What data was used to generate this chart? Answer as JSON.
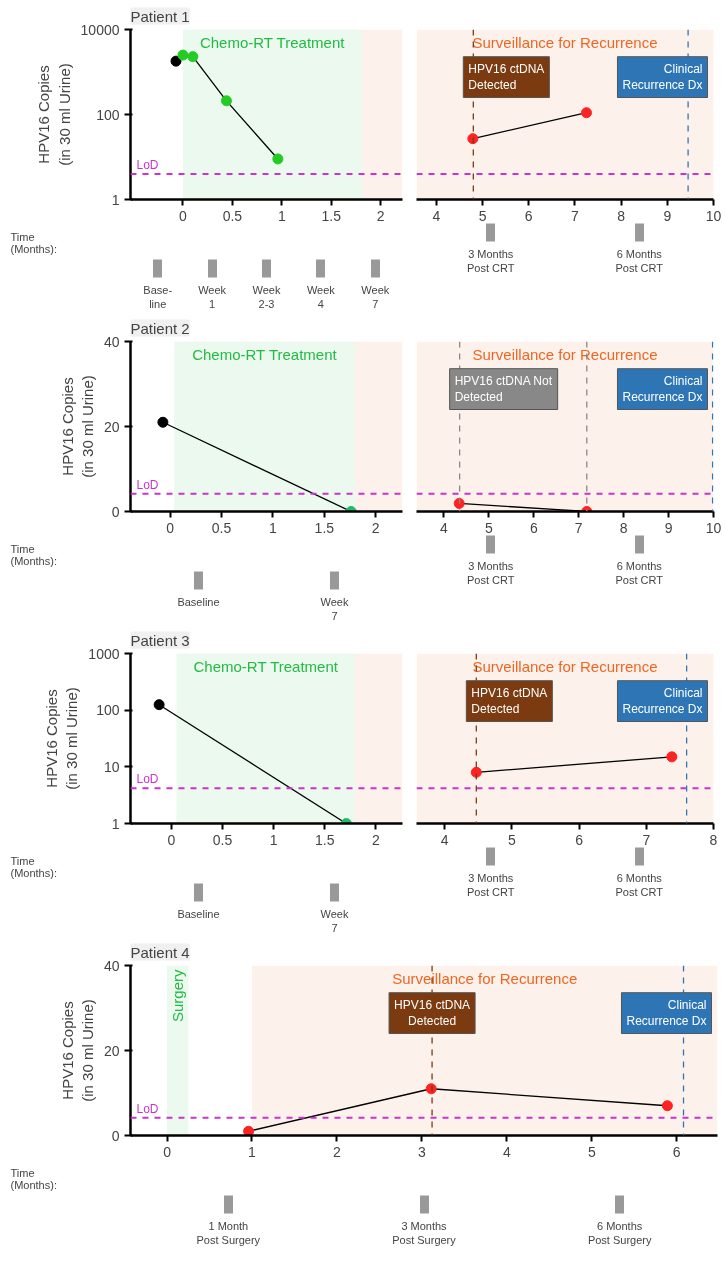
{
  "chart_data": [
    {
      "type": "line",
      "title": "Patient 1",
      "ylabel": "HPV16 Copies\n(in 30 ml Urine)",
      "xlabel": "Time\n(Months):",
      "log": "y",
      "marker": "circle",
      "xlim": [
        -0.53,
        2.22
      ],
      "xticks": [
        0,
        0.5,
        1,
        1.5,
        2
      ],
      "ylim": [
        1,
        10000
      ],
      "yticks": [
        1,
        100,
        10000
      ],
      "x": [
        -0.07,
        0,
        0.1,
        0.44,
        0.96
      ],
      "series": [
        {
          "color": "#000000",
          "colors": [
            "#000000",
            "#22cc22",
            "#22cc22",
            "#22cc22",
            "#22cc22"
          ],
          "values": [
            1800,
            2500,
            2300,
            210,
            9
          ]
        }
      ],
      "bands": [
        {
          "axis": "x",
          "from": 0,
          "to": 1.81,
          "label": "Chemo-RT Treatment",
          "color": "#22bb44"
        },
        {
          "axis": "x",
          "from": 1.81,
          "to": 2.22,
          "color": "#ee6622"
        }
      ],
      "ref_lines": [
        {
          "axis": "y",
          "value": 4,
          "label": "LoD",
          "color": "#cc33cc",
          "line_style": "dashed"
        }
      ],
      "annotations": [
        "Base-\nline",
        "Week\n1",
        "Week\n2-3",
        "Week\n4",
        "Week\n7"
      ]
    },
    {
      "type": "line",
      "log": "y",
      "marker": "circle",
      "tick_labels": "x",
      "xlim": [
        3.57,
        10
      ],
      "xticks": [
        4,
        5,
        6,
        7,
        8,
        9,
        10
      ],
      "ylim": [
        1,
        10000
      ],
      "yticks": [
        1,
        100,
        10000
      ],
      "x": [
        4.79,
        7.25
      ],
      "series": [
        {
          "color": "#000000",
          "colors": [
            "#ff2222",
            "#ff2222"
          ],
          "values": [
            27,
            110
          ]
        }
      ],
      "bands": [
        {
          "axis": "x",
          "from": 3.57,
          "to": 10,
          "label": "Surveillance for Recurrence",
          "color": "#ee6622"
        }
      ],
      "ref_lines": [
        {
          "axis": "y",
          "value": 4,
          "color": "#cc33cc",
          "line_style": "dashed"
        },
        {
          "axis": "x",
          "value": 4.8,
          "label": "HPV16 ctDNA\nDetected",
          "color": "#7b3a10",
          "line_style": "dashed"
        },
        {
          "axis": "x",
          "value": 9.45,
          "label": "Clinical\nRecurrence Dx",
          "color": "#2e75b6",
          "line_style": "dashed"
        }
      ],
      "annotations": [
        "3 Months\nPost CRT",
        "6 Months\nPost CRT"
      ]
    },
    {
      "type": "line",
      "title": "Patient 2",
      "ylabel": "HPV16 Copies\n(in 30 ml Urine)",
      "xlabel": "Time\n(Months):",
      "marker": "circle",
      "xlim": [
        -0.385,
        2.26
      ],
      "xticks": [
        0,
        0.5,
        1,
        1.5,
        2
      ],
      "ylim": [
        0,
        40
      ],
      "yticks": [
        0,
        20,
        40
      ],
      "x": [
        -0.07,
        1.76
      ],
      "series": [
        {
          "color": "#000000",
          "colors": [
            "#000000",
            "#22bb66"
          ],
          "values": [
            21,
            0
          ]
        }
      ],
      "bands": [
        {
          "axis": "x",
          "from": 0.04,
          "to": 1.8,
          "label": "Chemo-RT Treatment",
          "color": "#22bb44"
        },
        {
          "axis": "x",
          "from": 1.8,
          "to": 2.26,
          "color": "#ee6622"
        }
      ],
      "ref_lines": [
        {
          "axis": "y",
          "value": 4.2,
          "label": "LoD",
          "color": "#cc33cc",
          "line_style": "dashed"
        }
      ],
      "annotations": [
        "Baseline",
        "Week\n7"
      ]
    },
    {
      "type": "line",
      "marker": "circle",
      "tick_labels": "x",
      "xlim": [
        3.39,
        10
      ],
      "xticks": [
        4,
        5,
        6,
        7,
        8,
        9,
        10
      ],
      "ylim": [
        0,
        40
      ],
      "yticks": [
        0,
        20,
        40
      ],
      "x": [
        4.34,
        7.18
      ],
      "series": [
        {
          "color": "#000000",
          "colors": [
            "#ff2222",
            "#ff2222"
          ],
          "values": [
            1.9,
            0
          ]
        }
      ],
      "bands": [
        {
          "axis": "x",
          "from": 3.39,
          "to": 10,
          "label": "Surveillance for Recurrence",
          "color": "#ee6622"
        }
      ],
      "ref_lines": [
        {
          "axis": "y",
          "value": 4.2,
          "color": "#cc33cc",
          "line_style": "dashed"
        },
        {
          "axis": "x",
          "value": 4.35,
          "label": "HPV16 ctDNA Not\nDetected",
          "color": "#888888",
          "line_style": "dashed"
        },
        {
          "axis": "x",
          "value": 7.18,
          "color": "#888888",
          "line_style": "dashed"
        },
        {
          "axis": "x",
          "value": 9.98,
          "label": "Clinical\nRecurrence Dx",
          "color": "#2e75b6",
          "line_style": "dashed"
        }
      ],
      "annotations": [
        "3 Months\nPost CRT",
        "6 Months\nPost CRT"
      ]
    },
    {
      "type": "line",
      "title": "Patient 3",
      "ylabel": "HPV16 Copies\n(in 30 ml Urine)",
      "xlabel": "Time\n(Months):",
      "log": "y",
      "marker": "circle",
      "xlim": [
        -0.4,
        2.26
      ],
      "xticks": [
        0,
        0.5,
        1,
        1.5,
        2
      ],
      "ylim": [
        1,
        1000
      ],
      "yticks": [
        1,
        10,
        100,
        1000
      ],
      "x": [
        -0.12,
        1.71
      ],
      "series": [
        {
          "color": "#000000",
          "colors": [
            "#000000",
            "#22bb66"
          ],
          "values": [
            125,
            1
          ]
        }
      ],
      "bands": [
        {
          "axis": "x",
          "from": 0.05,
          "to": 1.8,
          "label": "Chemo-RT Treatment",
          "color": "#22bb44"
        },
        {
          "axis": "x",
          "from": 1.8,
          "to": 2.26,
          "color": "#ee6622"
        }
      ],
      "ref_lines": [
        {
          "axis": "y",
          "value": 4.2,
          "label": "LoD",
          "color": "#cc33cc",
          "line_style": "dashed"
        }
      ],
      "annotations": [
        "Baseline",
        "Week\n7"
      ]
    },
    {
      "type": "line",
      "log": "y",
      "marker": "circle",
      "tick_labels": "x",
      "xlim": [
        3.58,
        8
      ],
      "xticks": [
        4,
        5,
        6,
        7,
        8
      ],
      "ylim": [
        1,
        1000
      ],
      "yticks": [
        1,
        10,
        100,
        1000
      ],
      "x": [
        4.47,
        7.38
      ],
      "series": [
        {
          "color": "#000000",
          "colors": [
            "#ff2222",
            "#ff2222"
          ],
          "values": [
            8,
            15
          ]
        }
      ],
      "bands": [
        {
          "axis": "x",
          "from": 3.58,
          "to": 8,
          "label": "Surveillance for Recurrence",
          "color": "#ee6622"
        }
      ],
      "ref_lines": [
        {
          "axis": "y",
          "value": 4.2,
          "color": "#cc33cc",
          "line_style": "dashed"
        },
        {
          "axis": "x",
          "value": 4.47,
          "label": "HPV16 ctDNA\nDetected",
          "color": "#7b3a10",
          "line_style": "dashed"
        },
        {
          "axis": "x",
          "value": 7.6,
          "label": "Clinical\nRecurrence Dx",
          "color": "#2e75b6",
          "line_style": "dashed"
        }
      ],
      "annotations": [
        "3 Months\nPost CRT",
        "6 Months\nPost CRT"
      ]
    },
    {
      "type": "line",
      "title": "Patient 4",
      "ylabel": "HPV16 Copies\n(in 30 ml Urine)",
      "xlabel": "Time\n(Months):",
      "marker": "circle",
      "xlim": [
        -0.43,
        6.48
      ],
      "xticks": [
        0,
        1,
        2,
        3,
        4,
        5,
        6
      ],
      "ylim": [
        0,
        40
      ],
      "yticks": [
        0,
        20,
        40
      ],
      "x": [
        0.96,
        3.11,
        5.89
      ],
      "series": [
        {
          "color": "#000000",
          "colors": [
            "#ff2222",
            "#ff2222",
            "#ff2222"
          ],
          "values": [
            1,
            11,
            7
          ]
        }
      ],
      "bands": [
        {
          "axis": "x",
          "from": 0,
          "to": 0.25,
          "label": "Surgery",
          "color": "#22bb44"
        },
        {
          "axis": "x",
          "from": 1.0,
          "to": 6.48,
          "label": "Surveillance for Recurrence",
          "color": "#ee6622"
        }
      ],
      "ref_lines": [
        {
          "axis": "y",
          "value": 4.2,
          "label": "LoD",
          "color": "#cc33cc",
          "line_style": "dashed"
        },
        {
          "axis": "x",
          "value": 3.12,
          "label": "HPV16 ctDNA\nDetected",
          "color": "#7b3a10",
          "line_style": "dashed"
        },
        {
          "axis": "x",
          "value": 6.08,
          "label": "Clinical\nRecurrence Dx",
          "color": "#2e75b6",
          "line_style": "dashed"
        }
      ],
      "annotations": [
        "1 Month\nPost Surgery",
        "3 Months\nPost Surgery",
        "6 Months\nPost Surgery"
      ]
    }
  ]
}
